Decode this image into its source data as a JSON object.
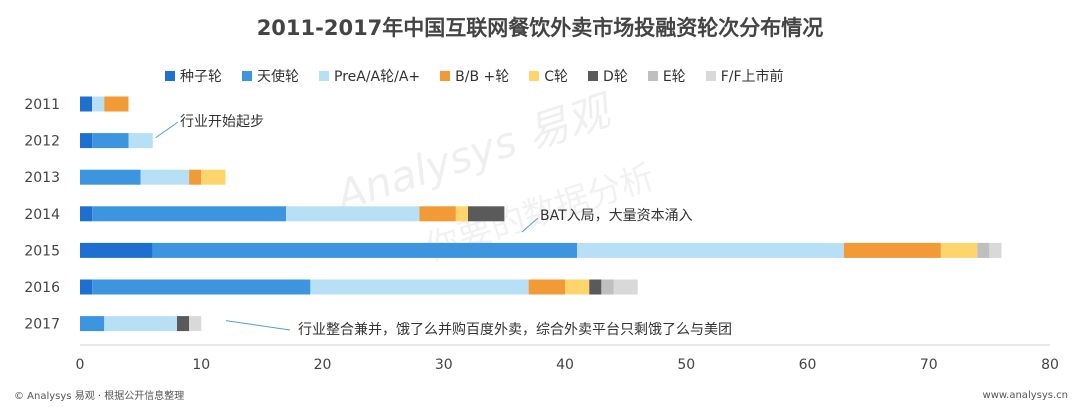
{
  "chart_data": {
    "type": "bar",
    "orientation": "horizontal",
    "stacked": true,
    "title": "2011-2017年中国互联网餐饮外卖市场投融资轮次分布情况",
    "categories": [
      "2011",
      "2012",
      "2013",
      "2014",
      "2015",
      "2016",
      "2017"
    ],
    "xlim": [
      0,
      80
    ],
    "xticks": [
      "0",
      "10",
      "20",
      "30",
      "40",
      "50",
      "60",
      "70",
      "80"
    ],
    "grid": false,
    "legend_position": "top",
    "series": [
      {
        "name": "种子轮",
        "color": "#1e6fd0",
        "values": [
          1,
          1,
          0,
          1,
          6,
          1,
          0
        ]
      },
      {
        "name": "天使轮",
        "color": "#3d95e0",
        "values": [
          0,
          3,
          5,
          16,
          35,
          18,
          2
        ]
      },
      {
        "name": "PreA/A轮/A+",
        "color": "#b7e0f7",
        "values": [
          1,
          2,
          4,
          11,
          22,
          18,
          6
        ]
      },
      {
        "name": "B/B +轮",
        "color": "#f19a36",
        "values": [
          2,
          0,
          1,
          3,
          8,
          3,
          0
        ]
      },
      {
        "name": "C轮",
        "color": "#fdd56b",
        "values": [
          0,
          0,
          2,
          1,
          3,
          2,
          0
        ]
      },
      {
        "name": "D轮",
        "color": "#5a5a5a",
        "values": [
          0,
          0,
          0,
          3,
          0,
          1,
          1
        ]
      },
      {
        "name": "E轮",
        "color": "#bfbfbf",
        "values": [
          0,
          0,
          0,
          0,
          1,
          1,
          0
        ]
      },
      {
        "name": "F/F上市前",
        "color": "#d9d9d9",
        "values": [
          0,
          0,
          0,
          0,
          1,
          2,
          1
        ]
      }
    ],
    "annotations": [
      {
        "text": "行业开始起步",
        "year": "2012",
        "at_x": 6
      },
      {
        "text": "BAT入局，大量资本涌入",
        "year": "2014",
        "at_x": 37
      },
      {
        "text": "行业整合兼并，饿了么并购百度外卖，综合外卖平台只剩饿了么与美团",
        "year": "2017",
        "at_x": 12
      }
    ]
  },
  "watermark": {
    "brand": "Analysys 易观",
    "slogan": "你要的数据分析"
  },
  "footer": {
    "left": "© Analysys 易观 · 根据公开信息整理",
    "right": "www.analysys.cn"
  }
}
